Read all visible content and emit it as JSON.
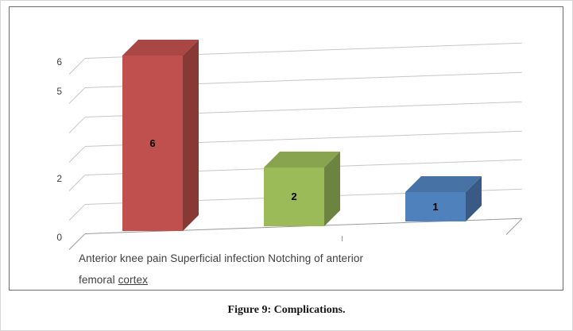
{
  "figure": {
    "caption": "Figure 9: Complications."
  },
  "chart_data": {
    "type": "bar",
    "style": "3d-column",
    "title": "Figure 9: Complications.",
    "categories": [
      "Anterior knee pain",
      "Superficial infection",
      "Notching of anterior femoral cortex"
    ],
    "values": [
      6,
      2,
      1
    ],
    "data_labels": [
      "6",
      "2",
      "1"
    ],
    "series": [
      {
        "name": "Complications",
        "values": [
          6,
          2,
          1
        ]
      }
    ],
    "ylim": [
      0,
      6
    ],
    "gridline_values": [
      0,
      1,
      2,
      3,
      4,
      5,
      6
    ],
    "yticks": [
      {
        "value": 6,
        "label": "6"
      },
      {
        "value": 5,
        "label": "5"
      },
      {
        "value": 2,
        "label": "2"
      },
      {
        "value": 0,
        "label": "0"
      }
    ],
    "legend": "none",
    "grid": true,
    "xlabel_line1": "Anterior knee pain Superficial infection Notching of anterior",
    "xlabel_line2_prefix": "femoral ",
    "xlabel_line2_link": "cortex",
    "bar_colors": {
      "front": [
        "#C0504D",
        "#9BBB59",
        "#4F81BD"
      ],
      "top": [
        "#A94744",
        "#89A44E",
        "#4672A6"
      ],
      "side": [
        "#873936",
        "#6D8340",
        "#385A84"
      ]
    },
    "axis_colors": {
      "gridline": "#C6C6C6",
      "axis": "#9A9A9A",
      "tick_text": "#3F3F3F"
    }
  }
}
